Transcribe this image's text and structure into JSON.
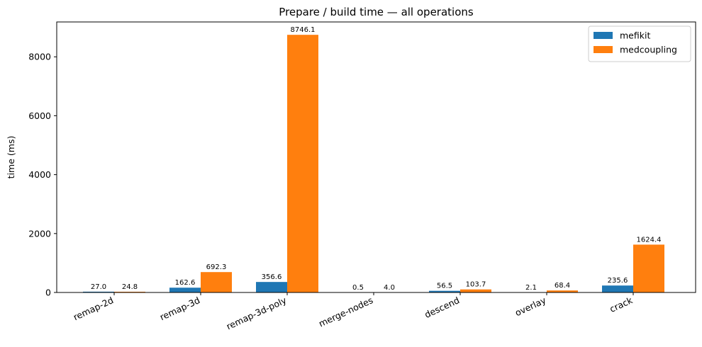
{
  "chart_data": {
    "type": "bar",
    "title": "Prepare / build time — all operations",
    "xlabel": "",
    "ylabel": "time (ms)",
    "categories": [
      "remap-2d",
      "remap-3d",
      "remap-3d-poly",
      "merge-nodes",
      "descend",
      "overlay",
      "crack"
    ],
    "series": [
      {
        "name": "mefikit",
        "color": "#1f77b4",
        "values": [
          27.0,
          162.6,
          356.6,
          0.5,
          56.5,
          2.1,
          235.6
        ],
        "labels": [
          "27.0",
          "162.6",
          "356.6",
          "0.5",
          "56.5",
          "2.1",
          "235.6"
        ]
      },
      {
        "name": "medcoupling",
        "color": "#ff7f0e",
        "values": [
          24.8,
          692.3,
          8746.1,
          4.0,
          103.7,
          68.4,
          1624.4
        ],
        "labels": [
          "24.8",
          "692.3",
          "8746.1",
          "4.0",
          "103.7",
          "68.4",
          "1624.4"
        ]
      }
    ],
    "ylim": [
      0,
      9183
    ],
    "yticks": [
      0,
      2000,
      4000,
      6000,
      8000
    ],
    "ytick_labels": [
      "0",
      "2000",
      "4000",
      "6000",
      "8000"
    ],
    "legend_position": "top-right",
    "grid": false
  }
}
